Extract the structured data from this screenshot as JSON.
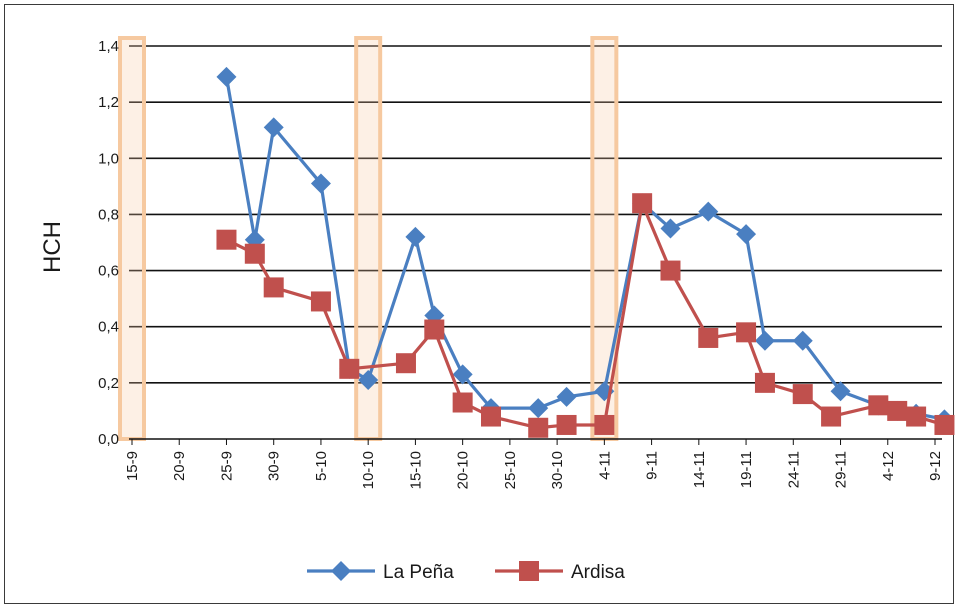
{
  "chart_data": {
    "type": "line",
    "title": "",
    "xlabel": "",
    "ylabel": "HCH",
    "ylim": [
      0,
      1.4
    ],
    "yticks": [
      "0,0",
      "0,2",
      "0,4",
      "0,6",
      "0,8",
      "1,0",
      "1,2",
      "1,4"
    ],
    "x_tick_labels": [
      "15-9",
      "20-9",
      "25-9",
      "30-9",
      "5-10",
      "10-10",
      "15-10",
      "20-10",
      "25-10",
      "30-10",
      "4-11",
      "9-11",
      "14-11",
      "19-11",
      "24-11",
      "29-11",
      "4-12",
      "9-12"
    ],
    "grid": true,
    "legend_position": "bottom",
    "highlighted_dates": [
      "15-9",
      "10-10",
      "4-11"
    ],
    "series": [
      {
        "name": "La Peña",
        "color": "#4a7fc1",
        "marker": "diamond",
        "points": [
          {
            "x": "25-9",
            "y": 1.29
          },
          {
            "x": "28-9",
            "y": 0.71
          },
          {
            "x": "30-9",
            "y": 1.11
          },
          {
            "x": "5-10",
            "y": 0.91
          },
          {
            "x": "8-10",
            "y": 0.25
          },
          {
            "x": "10-10",
            "y": 0.21
          },
          {
            "x": "15-10",
            "y": 0.72
          },
          {
            "x": "17-10",
            "y": 0.44
          },
          {
            "x": "20-10",
            "y": 0.23
          },
          {
            "x": "23-10",
            "y": 0.11
          },
          {
            "x": "28-10",
            "y": 0.11
          },
          {
            "x": "31-10",
            "y": 0.15
          },
          {
            "x": "4-11",
            "y": 0.17
          },
          {
            "x": "8-11",
            "y": 0.84
          },
          {
            "x": "11-11",
            "y": 0.75
          },
          {
            "x": "15-11",
            "y": 0.81
          },
          {
            "x": "19-11",
            "y": 0.73
          },
          {
            "x": "21-11",
            "y": 0.35
          },
          {
            "x": "25-11",
            "y": 0.35
          },
          {
            "x": "29-11",
            "y": 0.17
          },
          {
            "x": "3-12",
            "y": 0.12
          },
          {
            "x": "5-12",
            "y": 0.1
          },
          {
            "x": "7-12",
            "y": 0.09
          },
          {
            "x": "10-12",
            "y": 0.07
          }
        ]
      },
      {
        "name": "Ardisa",
        "color": "#c0504d",
        "marker": "square",
        "points": [
          {
            "x": "25-9",
            "y": 0.71
          },
          {
            "x": "28-9",
            "y": 0.66
          },
          {
            "x": "30-9",
            "y": 0.54
          },
          {
            "x": "5-10",
            "y": 0.49
          },
          {
            "x": "8-10",
            "y": 0.25
          },
          {
            "x": "14-10",
            "y": 0.27
          },
          {
            "x": "17-10",
            "y": 0.39
          },
          {
            "x": "20-10",
            "y": 0.13
          },
          {
            "x": "23-10",
            "y": 0.08
          },
          {
            "x": "28-10",
            "y": 0.04
          },
          {
            "x": "31-10",
            "y": 0.05
          },
          {
            "x": "4-11",
            "y": 0.05
          },
          {
            "x": "8-11",
            "y": 0.84
          },
          {
            "x": "11-11",
            "y": 0.6
          },
          {
            "x": "15-11",
            "y": 0.36
          },
          {
            "x": "19-11",
            "y": 0.38
          },
          {
            "x": "21-11",
            "y": 0.2
          },
          {
            "x": "25-11",
            "y": 0.16
          },
          {
            "x": "28-11",
            "y": 0.08
          },
          {
            "x": "3-12",
            "y": 0.12
          },
          {
            "x": "5-12",
            "y": 0.1
          },
          {
            "x": "7-12",
            "y": 0.08
          },
          {
            "x": "10-12",
            "y": 0.05
          }
        ]
      }
    ]
  }
}
